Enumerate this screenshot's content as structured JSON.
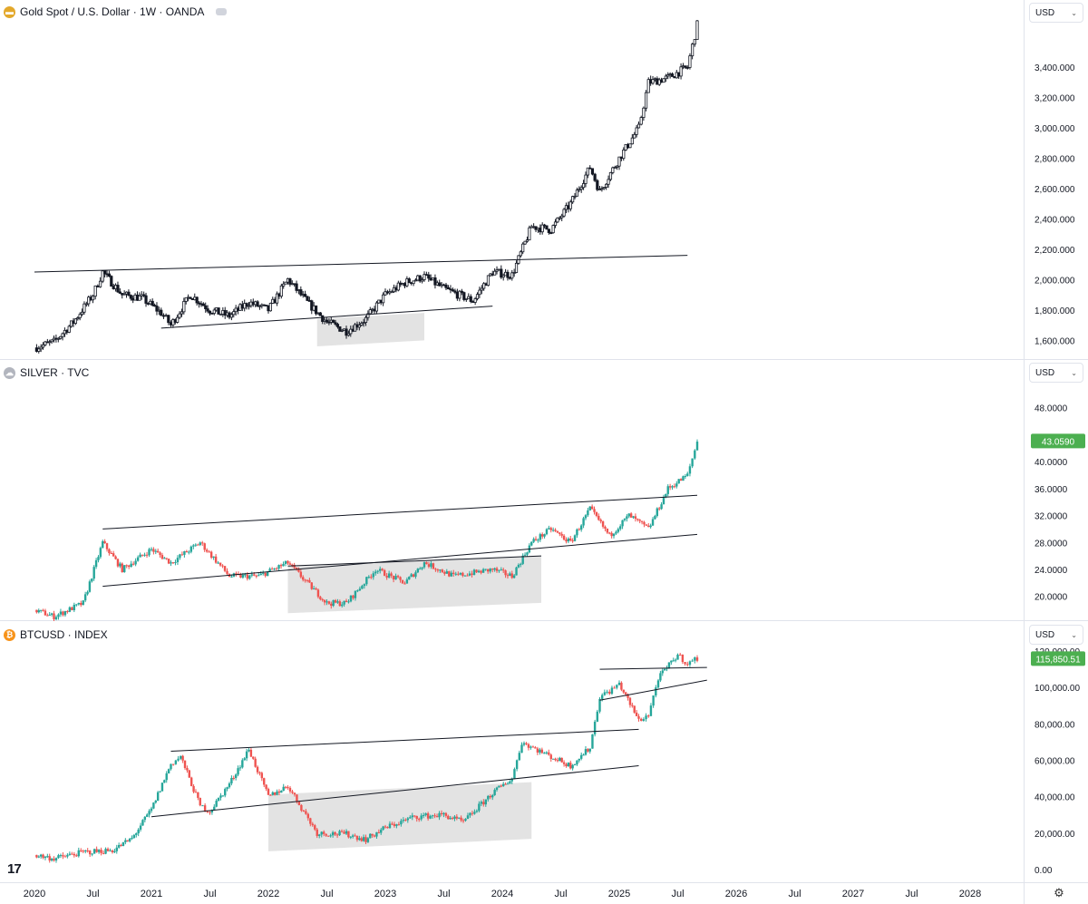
{
  "panes": [
    {
      "id": "gold",
      "title": "Gold Spot / U.S. Dollar · 1W · OANDA",
      "icon": "gold-icon",
      "icon_color": "#e3a82b",
      "currency": "USD",
      "last_value": ""
    },
    {
      "id": "silver",
      "title": "SILVER · TVC",
      "icon": "silver-icon",
      "icon_color": "#b2b5be",
      "currency": "USD",
      "last_value": "43.0590"
    },
    {
      "id": "btc",
      "title": "BTCUSD · INDEX",
      "icon": "bitcoin-icon",
      "icon_color": "#f7931a",
      "currency": "USD",
      "last_value": "115,850.51"
    }
  ],
  "colors": {
    "up": "#26a69a",
    "down": "#ef5350",
    "mono": "#131722",
    "badge": "#4caf50",
    "shade": "#d9d9d9"
  },
  "time_axis": [
    "2020",
    "Jul",
    "2021",
    "Jul",
    "2022",
    "Jul",
    "2023",
    "Jul",
    "2024",
    "Jul",
    "2025",
    "Jul",
    "2026",
    "Jul",
    "2027",
    "Jul",
    "2028"
  ],
  "chart_data": [
    {
      "type": "candlestick",
      "title": "Gold Spot / U.S. Dollar · 1W · OANDA",
      "style": "monochrome hollow candles",
      "x_range": [
        "2020-01",
        "2028-01"
      ],
      "ylim": [
        1500,
        3700
      ],
      "y_ticks": [
        "1,600.000",
        "1,800.000",
        "2,000.000",
        "2,200.000",
        "2,400.000",
        "2,600.000",
        "2,800.000",
        "3,000.000",
        "3,200.000",
        "3,400.000"
      ],
      "y_tick_values": [
        1600,
        1800,
        2000,
        2200,
        2400,
        2600,
        2800,
        3000,
        3200,
        3400
      ],
      "closes_approx": [
        [
          "2020-01",
          1550
        ],
        [
          "2020-03",
          1590
        ],
        [
          "2020-05",
          1720
        ],
        [
          "2020-07",
          1900
        ],
        [
          "2020-08",
          2050
        ],
        [
          "2020-10",
          1900
        ],
        [
          "2020-12",
          1880
        ],
        [
          "2021-02",
          1780
        ],
        [
          "2021-03",
          1700
        ],
        [
          "2021-05",
          1900
        ],
        [
          "2021-07",
          1800
        ],
        [
          "2021-09",
          1760
        ],
        [
          "2021-11",
          1850
        ],
        [
          "2022-01",
          1800
        ],
        [
          "2022-03",
          2000
        ],
        [
          "2022-05",
          1850
        ],
        [
          "2022-07",
          1720
        ],
        [
          "2022-09",
          1660
        ],
        [
          "2022-11",
          1740
        ],
        [
          "2023-01",
          1900
        ],
        [
          "2023-03",
          1980
        ],
        [
          "2023-05",
          2020
        ],
        [
          "2023-07",
          1940
        ],
        [
          "2023-10",
          1860
        ],
        [
          "2023-12",
          2050
        ],
        [
          "2024-02",
          2030
        ],
        [
          "2024-04",
          2350
        ],
        [
          "2024-06",
          2330
        ],
        [
          "2024-08",
          2500
        ],
        [
          "2024-10",
          2740
        ],
        [
          "2024-11",
          2580
        ],
        [
          "2025-01",
          2800
        ],
        [
          "2025-03",
          3000
        ],
        [
          "2025-04",
          3300
        ],
        [
          "2025-06",
          3330
        ],
        [
          "2025-08",
          3400
        ],
        [
          "2025-09",
          3680
        ]
      ],
      "trendlines": [
        {
          "from": [
            "2020-01",
            2050
          ],
          "to": [
            "2025-08",
            2160
          ]
        },
        {
          "from": [
            "2021-02",
            1680
          ],
          "to": [
            "2023-12",
            1825
          ]
        }
      ],
      "shaded_zones": [
        {
          "from": "2022-06",
          "to": "2023-05",
          "y": [
            1560,
            1780
          ]
        }
      ]
    },
    {
      "type": "candlestick",
      "title": "SILVER · TVC",
      "style": "red/green candles",
      "x_range": [
        "2020-01",
        "2028-01"
      ],
      "ylim": [
        17,
        52
      ],
      "y_ticks": [
        "20.0000",
        "24.0000",
        "28.0000",
        "32.0000",
        "36.0000",
        "40.0000",
        "48.0000"
      ],
      "y_tick_values": [
        20,
        24,
        28,
        32,
        36,
        40,
        48
      ],
      "last_price": 43.059,
      "closes_approx": [
        [
          "2020-01",
          18
        ],
        [
          "2020-03",
          17
        ],
        [
          "2020-06",
          19
        ],
        [
          "2020-08",
          28
        ],
        [
          "2020-10",
          24
        ],
        [
          "2021-01",
          27
        ],
        [
          "2021-03",
          25
        ],
        [
          "2021-06",
          28
        ],
        [
          "2021-09",
          23
        ],
        [
          "2021-12",
          23
        ],
        [
          "2022-03",
          25
        ],
        [
          "2022-05",
          22
        ],
        [
          "2022-07",
          19
        ],
        [
          "2022-09",
          19
        ],
        [
          "2022-12",
          24
        ],
        [
          "2023-03",
          22
        ],
        [
          "2023-05",
          25
        ],
        [
          "2023-08",
          23
        ],
        [
          "2023-12",
          24
        ],
        [
          "2024-02",
          23
        ],
        [
          "2024-04",
          28
        ],
        [
          "2024-06",
          30
        ],
        [
          "2024-08",
          28
        ],
        [
          "2024-10",
          33
        ],
        [
          "2024-12",
          29
        ],
        [
          "2025-02",
          32
        ],
        [
          "2025-04",
          30
        ],
        [
          "2025-06",
          36
        ],
        [
          "2025-08",
          38
        ],
        [
          "2025-09",
          43
        ]
      ],
      "trendlines": [
        {
          "from": [
            "2020-08",
            30
          ],
          "to": [
            "2025-09",
            35
          ]
        },
        {
          "from": [
            "2020-08",
            21.5
          ],
          "to": [
            "2025-09",
            29.2
          ]
        },
        {
          "from": [
            "2022-03",
            24.5
          ],
          "to": [
            "2024-05",
            26
          ]
        }
      ],
      "shaded_zones": [
        {
          "from": "2022-03",
          "to": "2024-05",
          "y": [
            17.5,
            26
          ]
        }
      ]
    },
    {
      "type": "candlestick",
      "title": "BTCUSD · INDEX",
      "style": "red/green candles",
      "x_range": [
        "2020-01",
        "2028-01"
      ],
      "ylim": [
        -5000,
        125000
      ],
      "y_ticks": [
        "0.00",
        "20,000.00",
        "40,000.00",
        "60,000.00",
        "80,000.00",
        "100,000.00",
        "120,000.00"
      ],
      "y_tick_values": [
        0,
        20000,
        40000,
        60000,
        80000,
        100000,
        120000
      ],
      "last_price": 115850.51,
      "closes_approx": [
        [
          "2020-01",
          8000
        ],
        [
          "2020-03",
          6000
        ],
        [
          "2020-06",
          9500
        ],
        [
          "2020-09",
          10500
        ],
        [
          "2020-11",
          17000
        ],
        [
          "2021-01",
          33000
        ],
        [
          "2021-03",
          58000
        ],
        [
          "2021-04",
          62000
        ],
        [
          "2021-06",
          35000
        ],
        [
          "2021-07",
          32000
        ],
        [
          "2021-09",
          47000
        ],
        [
          "2021-11",
          66000
        ],
        [
          "2022-01",
          40000
        ],
        [
          "2022-03",
          46000
        ],
        [
          "2022-06",
          20000
        ],
        [
          "2022-09",
          19500
        ],
        [
          "2022-11",
          16500
        ],
        [
          "2023-01",
          23000
        ],
        [
          "2023-04",
          29000
        ],
        [
          "2023-07",
          30000
        ],
        [
          "2023-09",
          26000
        ],
        [
          "2023-12",
          42000
        ],
        [
          "2024-02",
          50000
        ],
        [
          "2024-03",
          70000
        ],
        [
          "2024-06",
          62000
        ],
        [
          "2024-08",
          57000
        ],
        [
          "2024-10",
          67000
        ],
        [
          "2024-11",
          95000
        ],
        [
          "2024-12",
          98000
        ],
        [
          "2025-01",
          102000
        ],
        [
          "2025-03",
          82000
        ],
        [
          "2025-04",
          85000
        ],
        [
          "2025-05",
          105000
        ],
        [
          "2025-07",
          118000
        ],
        [
          "2025-08",
          113000
        ],
        [
          "2025-09",
          116000
        ]
      ],
      "trendlines": [
        {
          "from": [
            "2021-03",
            65000
          ],
          "to": [
            "2025-03",
            77000
          ]
        },
        {
          "from": [
            "2021-01",
            29000
          ],
          "to": [
            "2025-03",
            57000
          ]
        },
        {
          "from": [
            "2024-11",
            110000
          ],
          "to": [
            "2025-10",
            111000
          ]
        },
        {
          "from": [
            "2024-11",
            93000
          ],
          "to": [
            "2025-10",
            104000
          ]
        }
      ],
      "shaded_zones": [
        {
          "from": "2022-01",
          "to": "2024-04",
          "y": [
            10000,
            48000
          ]
        }
      ]
    }
  ]
}
